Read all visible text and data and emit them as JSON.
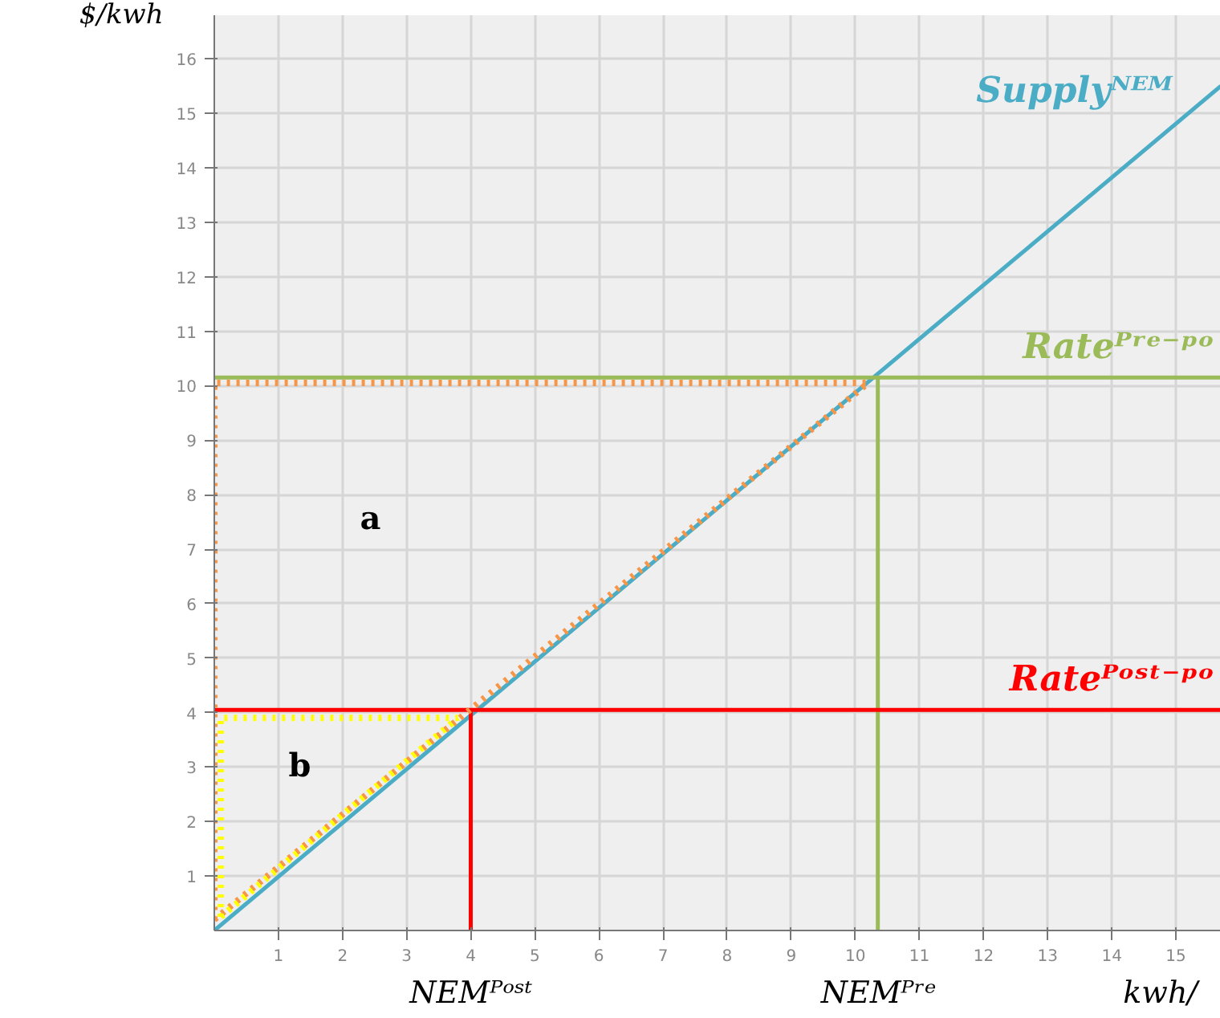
{
  "chart_data": {
    "type": "line",
    "xlabel": "kwh/",
    "ylabel": "$/kwh",
    "xlim": [
      0,
      15.7
    ],
    "ylim": [
      0,
      16.8
    ],
    "xticks": [
      1,
      2,
      3,
      4,
      5,
      6,
      7,
      8,
      9,
      10,
      11,
      12,
      13,
      14,
      15
    ],
    "yticks": [
      1,
      2,
      3,
      4,
      5,
      6,
      7,
      8,
      9,
      10,
      11,
      12,
      13,
      14,
      15,
      16
    ],
    "grid": true,
    "legend": false,
    "marker": "none",
    "series": [
      {
        "name": "Supplyᴺᴱᴹ",
        "color": "#4bacc6",
        "line_style": "solid",
        "x": [
          0,
          15.7
        ],
        "values": [
          0,
          15.5
        ]
      },
      {
        "name": "Rateᴾʳᵉ⁻ᵖᵒ",
        "color": "#9bbb59",
        "line_style": "solid",
        "x": [
          0,
          10.35,
          10.35,
          10.35,
          15.7
        ],
        "values": [
          10.15,
          10.15,
          0,
          10.15,
          10.15
        ]
      },
      {
        "name": "Rateᴾᵒˢᵗ⁻ᵖᵒ",
        "color": "#ff0000",
        "line_style": "solid",
        "x": [
          0,
          4,
          4,
          4,
          15.7
        ],
        "values": [
          4.05,
          4.05,
          0,
          4.05,
          4.05
        ]
      },
      {
        "color": "#f79646",
        "line_style": "dotted",
        "x": [
          0,
          0,
          10.2
        ],
        "values": [
          0.2,
          10.05,
          10.05
        ]
      },
      {
        "color": "#f79646",
        "line_style": "dotted",
        "x": [
          0,
          10.2
        ],
        "values": [
          0.2,
          10.05
        ]
      },
      {
        "color": "#ffff00",
        "line_style": "dotted",
        "x": [
          0.1,
          0.1,
          3.8
        ],
        "values": [
          0.25,
          3.9,
          3.9
        ]
      },
      {
        "color": "#ffff00",
        "line_style": "dotted",
        "x": [
          0.1,
          3.8
        ],
        "values": [
          0.25,
          3.9
        ]
      }
    ],
    "annotations": [
      "a",
      "b",
      "NEMᴾᵒˢᵗ",
      "NEMᴾʳᵉ"
    ]
  }
}
